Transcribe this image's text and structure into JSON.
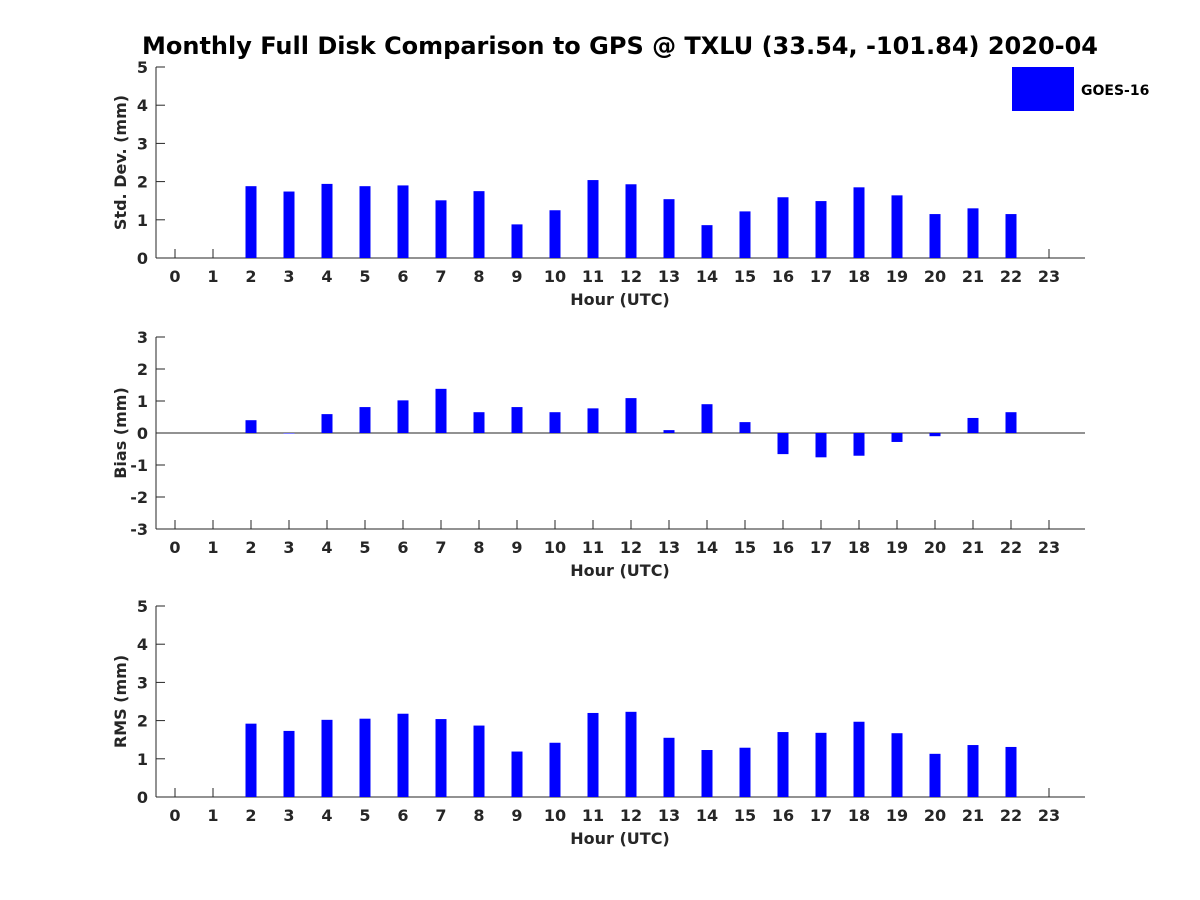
{
  "chart_data": {
    "title": "Monthly Full Disk Comparison to GPS @ TXLU (33.54, -101.84) 2020-04",
    "legend": {
      "label": "GOES-16",
      "placement": "top-right"
    },
    "series_color": "#0000ff",
    "panels": [
      {
        "type": "bar",
        "ylabel": "Std. Dev. (mm)",
        "xlabel": "Hour (UTC)",
        "ylim": [
          0,
          5
        ],
        "yticks": [
          0,
          1,
          2,
          3,
          4,
          5
        ],
        "categories": [
          "0",
          "1",
          "2",
          "3",
          "4",
          "5",
          "6",
          "7",
          "8",
          "9",
          "10",
          "11",
          "12",
          "13",
          "14",
          "15",
          "16",
          "17",
          "18",
          "19",
          "20",
          "21",
          "22",
          "23"
        ],
        "values": [
          null,
          null,
          1.88,
          1.74,
          1.94,
          1.88,
          1.9,
          1.51,
          1.75,
          0.88,
          1.25,
          2.04,
          1.93,
          1.54,
          0.86,
          1.22,
          1.59,
          1.49,
          1.85,
          1.64,
          1.15,
          1.3,
          1.15,
          null
        ]
      },
      {
        "type": "bar",
        "ylabel": "Bias (mm)",
        "xlabel": "Hour (UTC)",
        "ylim": [
          -3,
          3
        ],
        "yticks": [
          -3,
          -2,
          -1,
          0,
          1,
          2,
          3
        ],
        "zero_line": true,
        "categories": [
          "0",
          "1",
          "2",
          "3",
          "4",
          "5",
          "6",
          "7",
          "8",
          "9",
          "10",
          "11",
          "12",
          "13",
          "14",
          "15",
          "16",
          "17",
          "18",
          "19",
          "20",
          "21",
          "22",
          "23"
        ],
        "values": [
          null,
          null,
          0.4,
          0.0,
          0.59,
          0.81,
          1.02,
          1.38,
          0.65,
          0.81,
          0.65,
          0.77,
          1.09,
          0.09,
          0.9,
          0.34,
          -0.66,
          -0.76,
          -0.71,
          -0.28,
          -0.1,
          0.47,
          0.65,
          null
        ]
      },
      {
        "type": "bar",
        "ylabel": "RMS (mm)",
        "xlabel": "Hour (UTC)",
        "ylim": [
          0,
          5
        ],
        "yticks": [
          0,
          1,
          2,
          3,
          4,
          5
        ],
        "categories": [
          "0",
          "1",
          "2",
          "3",
          "4",
          "5",
          "6",
          "7",
          "8",
          "9",
          "10",
          "11",
          "12",
          "13",
          "14",
          "15",
          "16",
          "17",
          "18",
          "19",
          "20",
          "21",
          "22",
          "23"
        ],
        "values": [
          null,
          null,
          1.92,
          1.73,
          2.02,
          2.05,
          2.18,
          2.04,
          1.87,
          1.19,
          1.42,
          2.2,
          2.23,
          1.55,
          1.23,
          1.29,
          1.7,
          1.68,
          1.97,
          1.67,
          1.13,
          1.36,
          1.31,
          null
        ]
      }
    ]
  }
}
